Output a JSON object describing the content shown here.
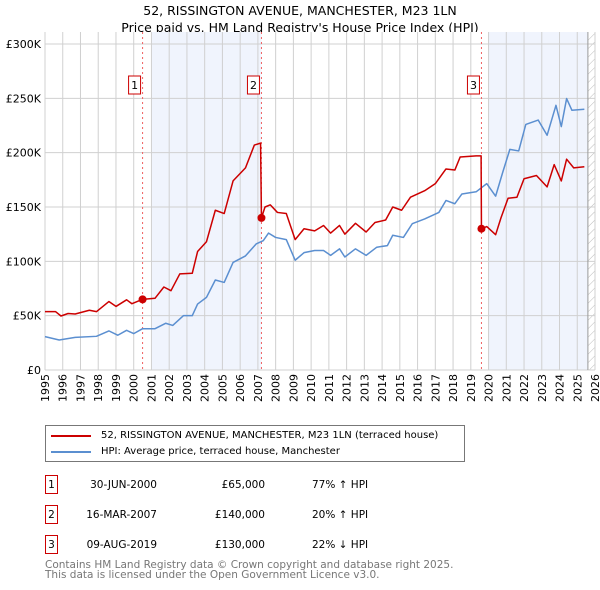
{
  "chart_data": {
    "type": "line",
    "title": "52, RISSINGTON AVENUE, MANCHESTER, M23 1LN",
    "subtitle": "Price paid vs. HM Land Registry's House Price Index (HPI)",
    "xlim": [
      1995,
      2026
    ],
    "ylim": [
      0,
      300000
    ],
    "x_ticks": [
      "1995",
      "1996",
      "1997",
      "1998",
      "1999",
      "2000",
      "2001",
      "2002",
      "2003",
      "2004",
      "2005",
      "2006",
      "2007",
      "2008",
      "2009",
      "2010",
      "2011",
      "2012",
      "2013",
      "2014",
      "2015",
      "2016",
      "2017",
      "2018",
      "2019",
      "2020",
      "2021",
      "2022",
      "2023",
      "2024",
      "2025",
      "2026"
    ],
    "y_ticks": [
      {
        "v": 0,
        "label": "£0"
      },
      {
        "v": 50000,
        "label": "£50K"
      },
      {
        "v": 100000,
        "label": "£100K"
      },
      {
        "v": 150000,
        "label": "£150K"
      },
      {
        "v": 200000,
        "label": "£200K"
      },
      {
        "v": 250000,
        "label": "£250K"
      },
      {
        "v": 300000,
        "label": "£300K"
      }
    ],
    "grid": true,
    "shaded_periods": [
      [
        2001.0,
        2007.2
      ],
      [
        2020.0,
        2025.6
      ]
    ],
    "hatched_from": 2025.6,
    "series": [
      {
        "name": "52, RISSINGTON AVENUE, MANCHESTER, M23 1LN (terraced house)",
        "color": "#cc0000",
        "points": [
          [
            1995.0,
            53700
          ],
          [
            1995.6,
            53700
          ],
          [
            1995.9,
            49700
          ],
          [
            1996.3,
            52000
          ],
          [
            1996.7,
            51500
          ],
          [
            1997.5,
            55000
          ],
          [
            1997.9,
            53700
          ],
          [
            1998.6,
            63000
          ],
          [
            1999.0,
            58500
          ],
          [
            1999.6,
            64600
          ],
          [
            1999.9,
            61000
          ],
          [
            2000.5,
            65000
          ],
          [
            2001.2,
            66000
          ],
          [
            2001.7,
            76400
          ],
          [
            2002.1,
            73000
          ],
          [
            2002.6,
            88500
          ],
          [
            2003.3,
            89000
          ],
          [
            2003.6,
            109000
          ],
          [
            2004.1,
            118000
          ],
          [
            2004.6,
            147000
          ],
          [
            2005.1,
            144000
          ],
          [
            2005.6,
            174000
          ],
          [
            2006.3,
            186000
          ],
          [
            2006.8,
            207000
          ],
          [
            2007.15,
            208800
          ],
          [
            2007.2,
            140000
          ],
          [
            2007.4,
            150000
          ],
          [
            2007.7,
            152000
          ],
          [
            2008.1,
            145000
          ],
          [
            2008.6,
            144000
          ],
          [
            2009.1,
            120000
          ],
          [
            2009.6,
            130000
          ],
          [
            2010.2,
            128000
          ],
          [
            2010.7,
            133000
          ],
          [
            2011.1,
            126000
          ],
          [
            2011.6,
            133000
          ],
          [
            2011.9,
            125000
          ],
          [
            2012.5,
            135000
          ],
          [
            2013.1,
            127000
          ],
          [
            2013.6,
            135700
          ],
          [
            2014.2,
            138000
          ],
          [
            2014.6,
            150000
          ],
          [
            2015.1,
            147000
          ],
          [
            2015.6,
            159000
          ],
          [
            2016.4,
            165000
          ],
          [
            2017.0,
            171500
          ],
          [
            2017.6,
            185000
          ],
          [
            2018.1,
            184000
          ],
          [
            2018.4,
            196000
          ],
          [
            2019.3,
            197000
          ],
          [
            2019.58,
            197000
          ],
          [
            2019.6,
            130000
          ],
          [
            2019.9,
            132000
          ],
          [
            2020.4,
            124500
          ],
          [
            2020.7,
            140000
          ],
          [
            2021.1,
            158000
          ],
          [
            2021.6,
            159000
          ],
          [
            2022.0,
            176000
          ],
          [
            2022.7,
            179000
          ],
          [
            2023.3,
            168500
          ],
          [
            2023.7,
            189000
          ],
          [
            2024.1,
            174000
          ],
          [
            2024.4,
            194000
          ],
          [
            2024.8,
            186000
          ],
          [
            2025.4,
            187000
          ]
        ]
      },
      {
        "name": "HPI: Average price, terraced house, Manchester",
        "color": "#5b8fd0",
        "points": [
          [
            1995.0,
            30700
          ],
          [
            1995.8,
            27600
          ],
          [
            1996.7,
            30000
          ],
          [
            1997.9,
            31000
          ],
          [
            1998.6,
            36000
          ],
          [
            1999.1,
            32000
          ],
          [
            1999.6,
            36500
          ],
          [
            2000.0,
            33500
          ],
          [
            2000.5,
            38000
          ],
          [
            2001.2,
            38000
          ],
          [
            2001.8,
            43000
          ],
          [
            2002.2,
            41000
          ],
          [
            2002.8,
            50000
          ],
          [
            2003.3,
            50000
          ],
          [
            2003.6,
            60700
          ],
          [
            2004.1,
            66800
          ],
          [
            2004.6,
            82800
          ],
          [
            2005.1,
            80600
          ],
          [
            2005.6,
            99000
          ],
          [
            2006.3,
            105000
          ],
          [
            2006.9,
            116000
          ],
          [
            2007.3,
            119000
          ],
          [
            2007.6,
            126000
          ],
          [
            2008.0,
            122000
          ],
          [
            2008.6,
            120000
          ],
          [
            2009.1,
            101000
          ],
          [
            2009.6,
            108000
          ],
          [
            2010.2,
            110000
          ],
          [
            2010.7,
            110000
          ],
          [
            2011.1,
            105500
          ],
          [
            2011.6,
            111500
          ],
          [
            2011.9,
            104000
          ],
          [
            2012.5,
            111500
          ],
          [
            2013.1,
            105500
          ],
          [
            2013.7,
            113000
          ],
          [
            2014.3,
            114500
          ],
          [
            2014.6,
            124000
          ],
          [
            2015.2,
            122000
          ],
          [
            2015.7,
            134600
          ],
          [
            2016.4,
            139000
          ],
          [
            2017.2,
            145000
          ],
          [
            2017.6,
            156000
          ],
          [
            2018.1,
            153000
          ],
          [
            2018.5,
            162000
          ],
          [
            2019.3,
            164000
          ],
          [
            2019.9,
            171500
          ],
          [
            2020.4,
            160000
          ],
          [
            2020.8,
            182000
          ],
          [
            2021.2,
            203000
          ],
          [
            2021.7,
            201600
          ],
          [
            2022.1,
            226000
          ],
          [
            2022.8,
            230000
          ],
          [
            2023.3,
            216000
          ],
          [
            2023.8,
            243600
          ],
          [
            2024.1,
            224000
          ],
          [
            2024.4,
            249800
          ],
          [
            2024.7,
            239000
          ],
          [
            2025.4,
            240000
          ]
        ]
      }
    ],
    "sales": [
      {
        "id": "1",
        "x": 2000.5,
        "value": 65000
      },
      {
        "id": "2",
        "x": 2007.2,
        "value": 140000
      },
      {
        "id": "3",
        "x": 2019.6,
        "value": 130000
      }
    ],
    "legend_position": "below"
  },
  "table": [
    {
      "num": "1",
      "date": "30-JUN-2000",
      "price": "£65,000",
      "hpi": "77% ↑ HPI"
    },
    {
      "num": "2",
      "date": "16-MAR-2007",
      "price": "£140,000",
      "hpi": "20% ↑ HPI"
    },
    {
      "num": "3",
      "date": "09-AUG-2019",
      "price": "£130,000",
      "hpi": "22% ↓ HPI"
    }
  ],
  "footer": {
    "line1": "Contains HM Land Registry data © Crown copyright and database right 2025.",
    "line2": "This data is licensed under the Open Government Licence v3.0."
  }
}
